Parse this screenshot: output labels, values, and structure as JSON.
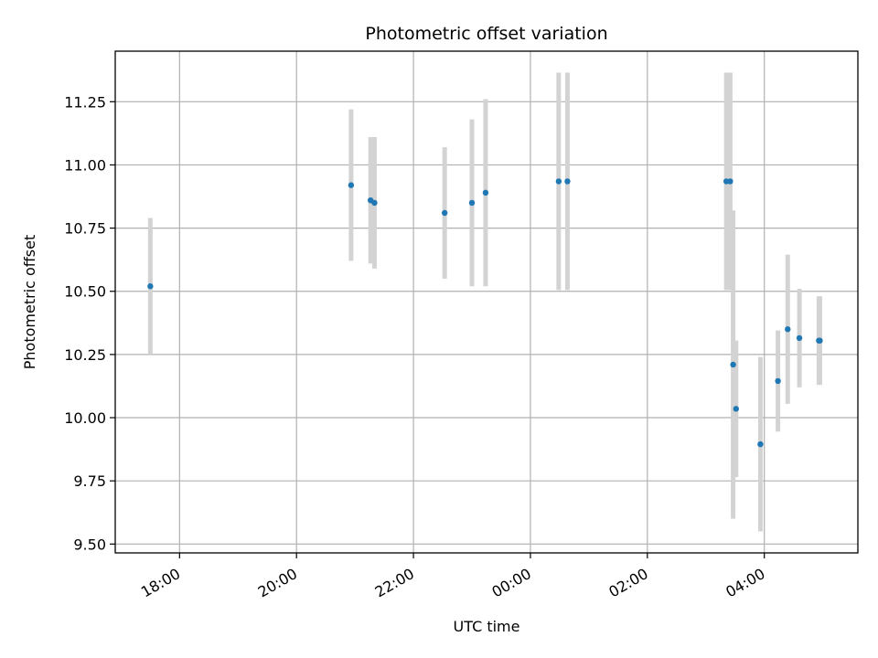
{
  "chart_data": {
    "type": "scatter",
    "title": "Photometric offset variation",
    "xlabel": "UTC time",
    "ylabel": "Photometric offset",
    "x_axis": {
      "hours_from_first_tick_range": [
        -1.1,
        11.6
      ],
      "tick_hours": [
        0,
        2,
        4,
        6,
        8,
        10
      ],
      "tick_labels": [
        "18:00",
        "20:00",
        "22:00",
        "00:00",
        "02:00",
        "04:00"
      ]
    },
    "ylim": [
      9.465,
      11.45
    ],
    "y_ticks": [
      9.5,
      9.75,
      10.0,
      10.25,
      10.5,
      10.75,
      11.0,
      11.25
    ],
    "y_tick_labels": [
      "9.50",
      "9.75",
      "10.00",
      "10.25",
      "10.50",
      "10.75",
      "11.00",
      "11.25"
    ],
    "grid": true,
    "legend": "none",
    "colors": {
      "point": "#1f77b4",
      "errorbar": "#d3d3d3",
      "grid": "#b0b0b0",
      "axes": "#000000"
    },
    "series": [
      {
        "points": [
          {
            "time": "17:30",
            "y": 10.52,
            "err": 0.27
          },
          {
            "time": "20:56",
            "y": 10.92,
            "err": 0.3
          },
          {
            "time": "21:16",
            "y": 10.86,
            "err": 0.25
          },
          {
            "time": "21:20",
            "y": 10.85,
            "err": 0.26
          },
          {
            "time": "22:32",
            "y": 10.81,
            "err": 0.26
          },
          {
            "time": "23:00",
            "y": 10.85,
            "err": 0.33
          },
          {
            "time": "23:14",
            "y": 10.89,
            "err": 0.37
          },
          {
            "time": "00:29",
            "y": 10.935,
            "err": 0.43
          },
          {
            "time": "00:38",
            "y": 10.935,
            "err": 0.43
          },
          {
            "time": "03:21",
            "y": 10.935,
            "err": 0.43
          },
          {
            "time": "03:25",
            "y": 10.935,
            "err": 0.43
          },
          {
            "time": "03:28",
            "y": 10.21,
            "err": 0.61
          },
          {
            "time": "03:31",
            "y": 10.035,
            "err": 0.27
          },
          {
            "time": "03:56",
            "y": 9.895,
            "err": 0.345
          },
          {
            "time": "04:14",
            "y": 10.145,
            "err": 0.2
          },
          {
            "time": "04:24",
            "y": 10.35,
            "err": 0.295
          },
          {
            "time": "04:36",
            "y": 10.315,
            "err": 0.195
          },
          {
            "time": "04:56",
            "y": 10.305,
            "err": 0.175
          },
          {
            "time": "04:57",
            "y": 10.305,
            "err": 0.175
          }
        ]
      }
    ]
  }
}
